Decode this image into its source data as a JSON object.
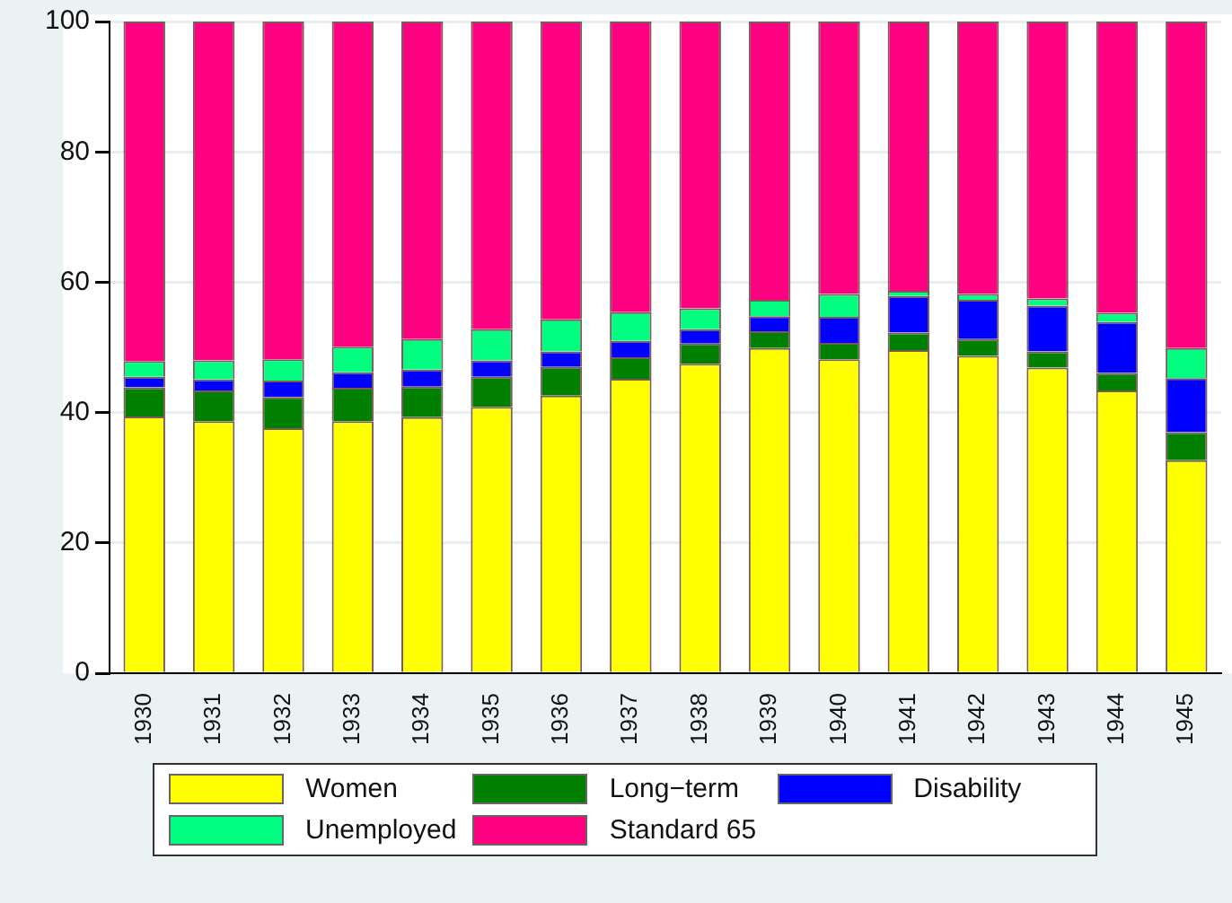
{
  "chart_data": {
    "type": "bar",
    "stacked": true,
    "categories": [
      "1930",
      "1931",
      "1932",
      "1933",
      "1934",
      "1935",
      "1936",
      "1937",
      "1938",
      "1939",
      "1940",
      "1941",
      "1942",
      "1943",
      "1944",
      "1945"
    ],
    "series": [
      {
        "name": "Women",
        "color": "#ffff00",
        "values": [
          39.4,
          38.7,
          37.6,
          38.7,
          39.3,
          40.9,
          42.6,
          45.2,
          47.5,
          49.9,
          48.2,
          49.6,
          48.7,
          46.9,
          43.4,
          32.7
        ]
      },
      {
        "name": "Long−term",
        "color": "#008000",
        "values": [
          4.5,
          4.7,
          4.8,
          5.1,
          4.7,
          4.6,
          4.4,
          3.3,
          3.1,
          2.6,
          2.5,
          2.7,
          2.6,
          2.5,
          2.7,
          4.3
        ]
      },
      {
        "name": "Disability",
        "color": "#0000ff",
        "values": [
          1.6,
          1.7,
          2.5,
          2.4,
          2.6,
          2.5,
          2.4,
          2.5,
          2.2,
          2.3,
          4.0,
          5.6,
          6.0,
          7.0,
          7.8,
          8.3
        ]
      },
      {
        "name": "Unemployed",
        "color": "#00ff80",
        "values": [
          2.4,
          2.9,
          3.3,
          3.9,
          4.7,
          4.8,
          4.9,
          4.4,
          3.2,
          2.5,
          3.5,
          0.8,
          0.9,
          1.1,
          1.4,
          4.6
        ]
      },
      {
        "name": "Standard 65",
        "color": "#ff0080",
        "values": [
          52.1,
          52.0,
          51.8,
          49.9,
          48.7,
          47.2,
          45.7,
          44.6,
          44.0,
          42.7,
          41.8,
          41.3,
          41.8,
          42.5,
          44.7,
          50.1
        ]
      }
    ],
    "ylim": [
      0,
      100
    ],
    "yticks": [
      0,
      20,
      40,
      60,
      80,
      100
    ],
    "grid": "y",
    "legend": "bottom"
  }
}
